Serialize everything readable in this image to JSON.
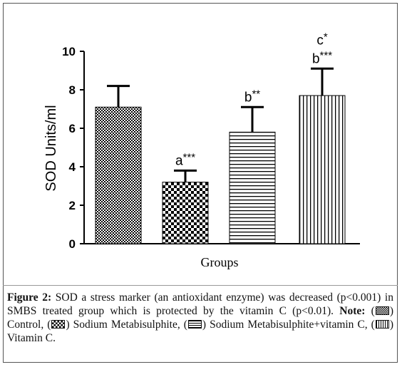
{
  "chart_data": {
    "type": "bar",
    "ylabel": "SOD Units/ml",
    "xlabel": "Groups",
    "ylim": [
      0,
      10
    ],
    "yticks": [
      "0",
      "2",
      "4",
      "6",
      "8",
      "10"
    ],
    "values": [
      7.1,
      3.2,
      5.8,
      7.7
    ],
    "errors": [
      1.1,
      0.6,
      1.3,
      1.4
    ],
    "annotations": [
      [],
      [
        "a***"
      ],
      [
        "b**"
      ],
      [
        "c*",
        "b***"
      ]
    ],
    "fills": [
      "checker-dense",
      "checker-large",
      "horizontal-lines",
      "vertical-lines"
    ],
    "color": "#000000"
  },
  "caption": {
    "figure_label": "Figure 2:",
    "text1": " SOD a stress marker (an antioxidant enzyme) was decreased (p<0.001) in SMBS treated group which is protected by the vitamin C (p<0.01). ",
    "note_label": "Note:",
    "legend": [
      {
        "label": "Control,",
        "pattern": "checker-dense"
      },
      {
        "label": "Sodium Metabisulphite,",
        "pattern": "checker-large"
      },
      {
        "label": "Sodium Metabisulphite+vitamin C,",
        "pattern": "horizontal-lines"
      },
      {
        "label": "Vitamin C.",
        "pattern": "vertical-lines"
      }
    ]
  }
}
